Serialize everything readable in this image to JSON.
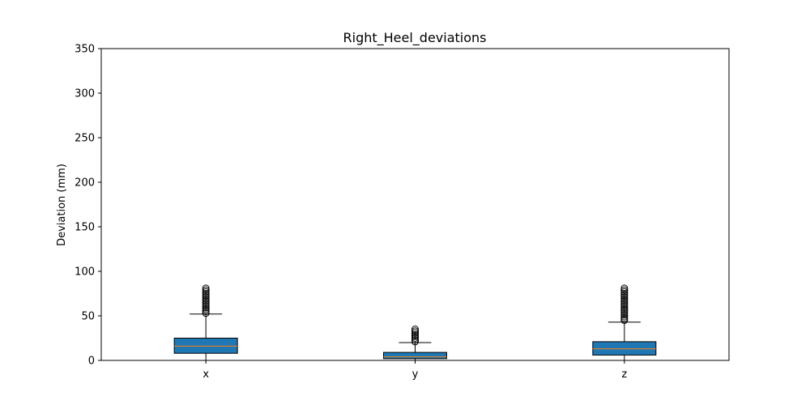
{
  "chart_data": {
    "type": "boxplot",
    "title": "Right_Heel_deviations",
    "xlabel": "",
    "ylabel": "Deviation (mm)",
    "ylim": [
      0,
      350
    ],
    "yticks": [
      0,
      50,
      100,
      150,
      200,
      250,
      300,
      350
    ],
    "categories": [
      "x",
      "y",
      "z"
    ],
    "boxes": [
      {
        "category": "x",
        "whisker_low": 0,
        "q1": 8,
        "median": 16,
        "q3": 25,
        "whisker_high": 52,
        "outliers": [
          53,
          55,
          57,
          59,
          61,
          63,
          65,
          67,
          69,
          71,
          73,
          75,
          77,
          79,
          81
        ]
      },
      {
        "category": "y",
        "whisker_low": 0,
        "q1": 2,
        "median": 4,
        "q3": 9,
        "whisker_high": 20,
        "outliers": [
          21,
          23,
          25,
          27,
          29,
          31,
          33,
          35
        ]
      },
      {
        "category": "z",
        "whisker_low": 0,
        "q1": 6,
        "median": 13,
        "q3": 21,
        "whisker_high": 43,
        "outliers": [
          45,
          47,
          49,
          51,
          53,
          55,
          57,
          59,
          61,
          63,
          65,
          67,
          69,
          71,
          73,
          75,
          77,
          79,
          81
        ]
      }
    ],
    "colors": {
      "box_fill": "#1f77b4",
      "median": "#ff7f0e",
      "line": "#000000"
    },
    "grid": false,
    "legend": "none"
  }
}
